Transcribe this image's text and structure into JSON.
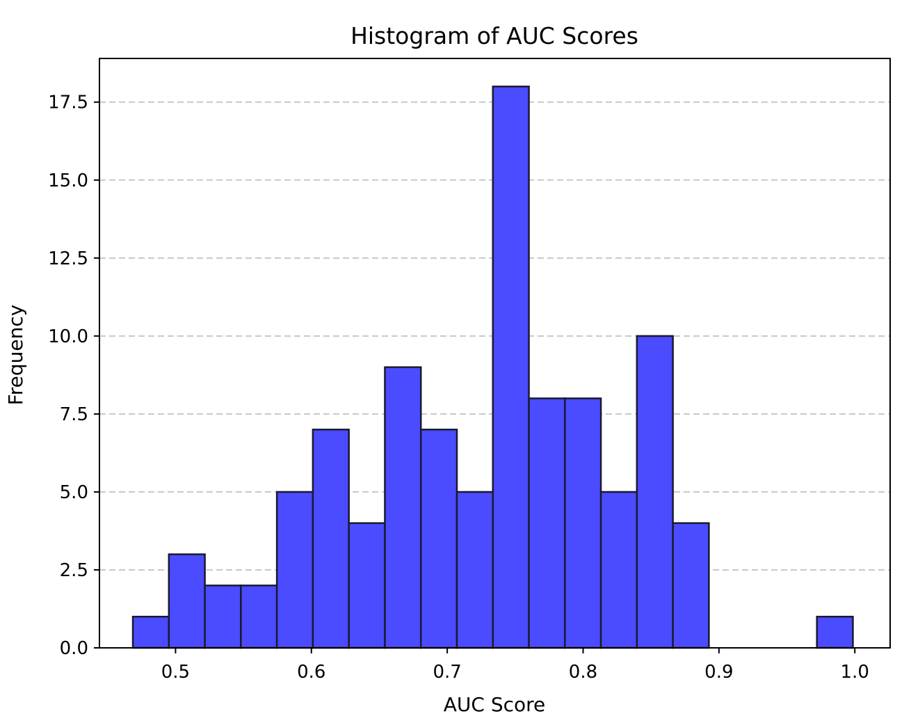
{
  "chart_data": {
    "type": "bar",
    "subtype": "histogram",
    "title": "Histogram of AUC Scores",
    "xlabel": "AUC Score",
    "ylabel": "Frequency",
    "xlim": [
      0.444,
      1.026
    ],
    "ylim": [
      0,
      18.9
    ],
    "x_ticks": [
      "0.5",
      "0.6",
      "0.7",
      "0.8",
      "0.9",
      "1.0"
    ],
    "y_ticks": [
      "0.0",
      "2.5",
      "5.0",
      "7.5",
      "10.0",
      "12.5",
      "15.0",
      "17.5"
    ],
    "bin_edges": [
      0.4686,
      0.4951,
      0.5216,
      0.5481,
      0.5746,
      0.6011,
      0.6276,
      0.6541,
      0.6806,
      0.7071,
      0.7336,
      0.7601,
      0.7866,
      0.8131,
      0.8396,
      0.8661,
      0.8926,
      0.9191,
      0.9456,
      0.9721,
      0.9986
    ],
    "counts": [
      1,
      3,
      2,
      2,
      5,
      7,
      4,
      9,
      7,
      5,
      18,
      8,
      8,
      5,
      10,
      4,
      0,
      0,
      0,
      1
    ],
    "grid": "y-dashed",
    "colors": {
      "bar_fill": "#4b4bff",
      "bar_edge": "#1a1a2e",
      "grid": "#c8c8c8"
    }
  }
}
